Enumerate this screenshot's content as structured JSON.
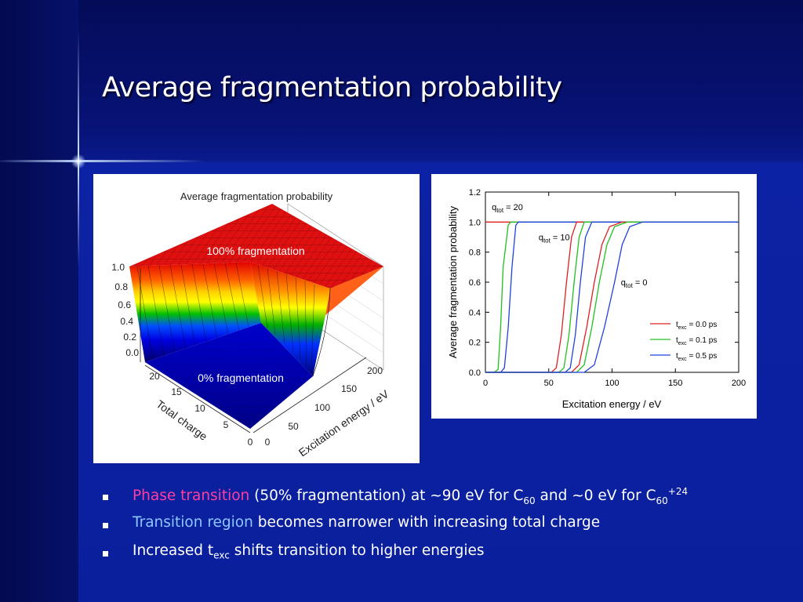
{
  "slide": {
    "title": "Average fragmentation probability"
  },
  "surface_plot": {
    "title": "Average fragmentation probability",
    "label_high": "100% fragmentation",
    "label_low": "0% fragmentation",
    "z_ticks": [
      "1.0",
      "0.8",
      "0.6",
      "0.4",
      "0.2",
      "0.0"
    ],
    "charge_ticks": [
      "20",
      "15",
      "10",
      "5",
      "0"
    ],
    "energy_ticks": [
      "0",
      "50",
      "100",
      "150",
      "200"
    ],
    "charge_label": "Total charge",
    "energy_label": "Excitation energy / eV",
    "colors": [
      "#e00000",
      "#ff8000",
      "#ffff00",
      "#00c000",
      "#0000ff",
      "#000080"
    ]
  },
  "chart_data": {
    "type": "line",
    "xlabel": "Excitation energy / eV",
    "ylabel": "Average fragmentation probability",
    "xlim": [
      0,
      200
    ],
    "ylim": [
      0,
      1.2
    ],
    "x_ticks": [
      0,
      50,
      100,
      150,
      200
    ],
    "y_ticks": [
      0.0,
      0.2,
      0.4,
      0.6,
      0.8,
      1.0,
      1.2
    ],
    "x_tick_labels": [
      "0",
      "50",
      "100",
      "150",
      "200"
    ],
    "y_tick_labels": [
      "0.0",
      "0.2",
      "0.4",
      "0.6",
      "0.8",
      "1.0",
      "1.2"
    ],
    "annotations": [
      {
        "text": "q",
        "sub": "tot",
        "rest": " = 20",
        "x": 5,
        "y": 1.08
      },
      {
        "text": "q",
        "sub": "tot",
        "rest": " = 10",
        "x": 42,
        "y": 0.88
      },
      {
        "text": "q",
        "sub": "tot",
        "rest": " = 0",
        "x": 107,
        "y": 0.58
      }
    ],
    "legend": [
      {
        "prefix": "t",
        "sub": "exc",
        "rest": " = 0.0 ps",
        "color": "#e02020"
      },
      {
        "prefix": "t",
        "sub": "exc",
        "rest": " = 0.1 ps",
        "color": "#20c020"
      },
      {
        "prefix": "t",
        "sub": "exc",
        "rest": " = 0.5 ps",
        "color": "#2040e0"
      }
    ],
    "legend_position": "lower-right",
    "series": [
      {
        "group": "q20",
        "color": "#e02020",
        "x": [
          0,
          200
        ],
        "y": [
          1.0,
          1.0
        ]
      },
      {
        "group": "q20",
        "color": "#20c020",
        "x": [
          0,
          7,
          10,
          12,
          14,
          18,
          20,
          200
        ],
        "y": [
          0.0,
          0.0,
          0.02,
          0.3,
          0.7,
          0.98,
          1.0,
          1.0
        ]
      },
      {
        "group": "q20",
        "color": "#2040e0",
        "x": [
          0,
          12,
          15,
          18,
          21,
          24,
          26,
          200
        ],
        "y": [
          0.0,
          0.0,
          0.03,
          0.3,
          0.7,
          0.98,
          1.0,
          1.0
        ]
      },
      {
        "group": "q10",
        "color": "#e02020",
        "x": [
          0,
          52,
          56,
          60,
          64,
          68,
          72,
          200
        ],
        "y": [
          0.0,
          0.0,
          0.03,
          0.25,
          0.6,
          0.9,
          1.0,
          1.0
        ]
      },
      {
        "group": "q10",
        "color": "#20c020",
        "x": [
          0,
          58,
          62,
          66,
          70,
          74,
          78,
          200
        ],
        "y": [
          0.0,
          0.0,
          0.03,
          0.25,
          0.6,
          0.9,
          1.0,
          1.0
        ]
      },
      {
        "group": "q10",
        "color": "#2040e0",
        "x": [
          0,
          63,
          67,
          71,
          75,
          79,
          84,
          200
        ],
        "y": [
          0.0,
          0.0,
          0.03,
          0.25,
          0.6,
          0.9,
          1.0,
          1.0
        ]
      },
      {
        "group": "q0",
        "color": "#e02020",
        "x": [
          0,
          68,
          74,
          80,
          86,
          92,
          98,
          108,
          200
        ],
        "y": [
          0.0,
          0.0,
          0.05,
          0.3,
          0.6,
          0.85,
          0.97,
          1.0,
          1.0
        ]
      },
      {
        "group": "q0",
        "color": "#20c020",
        "x": [
          0,
          72,
          78,
          84,
          90,
          96,
          102,
          112,
          200
        ],
        "y": [
          0.0,
          0.0,
          0.05,
          0.3,
          0.6,
          0.85,
          0.97,
          1.0,
          1.0
        ]
      },
      {
        "group": "q0",
        "color": "#2040e0",
        "x": [
          0,
          78,
          86,
          94,
          102,
          108,
          114,
          124,
          200
        ],
        "y": [
          0.0,
          0.0,
          0.05,
          0.3,
          0.6,
          0.85,
          0.97,
          1.0,
          1.0
        ]
      }
    ]
  },
  "bullets": {
    "b1": {
      "highlight": "Phase transition",
      "text_a": " (50% fragmentation) at ~90 eV for C",
      "sub_a": "60",
      "text_b": " and ~0 eV for C",
      "sub_b": "60",
      "sup_b": "+24"
    },
    "b2": {
      "highlight": "Transition region",
      "text": " becomes narrower with increasing total charge"
    },
    "b3": {
      "text_a": "Increased t",
      "sub": "exc",
      "text_b": " shifts transition to higher energies"
    }
  }
}
